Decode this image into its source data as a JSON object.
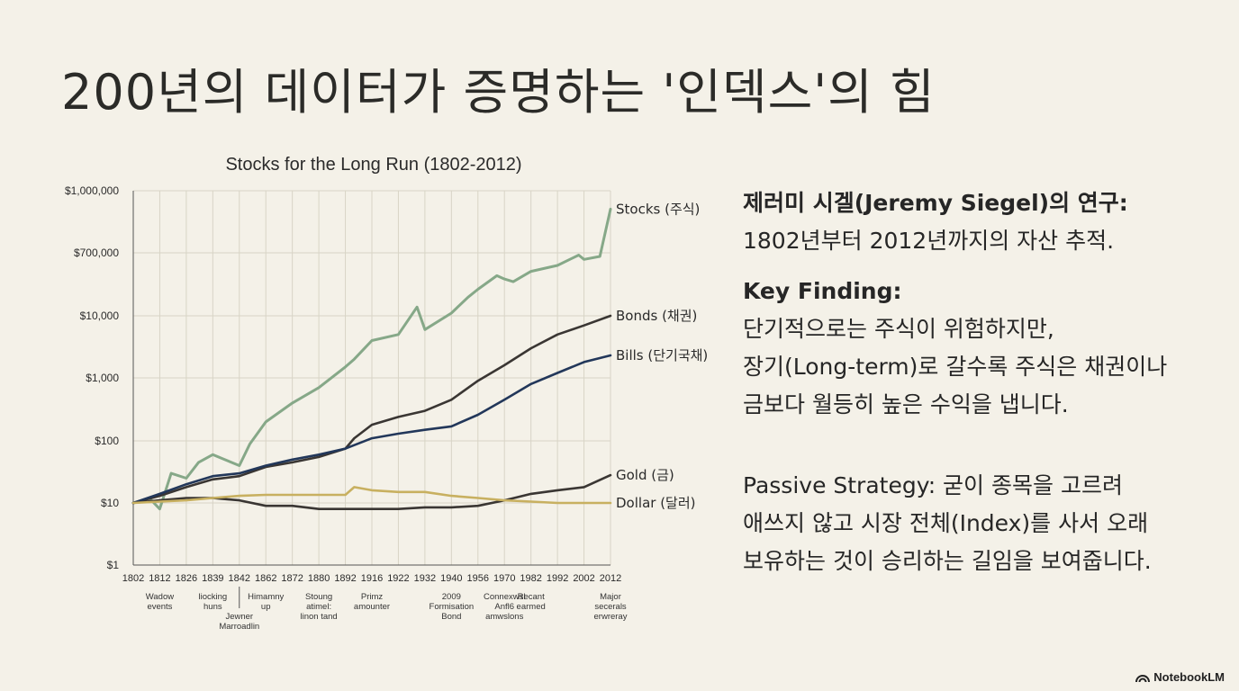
{
  "page": {
    "title": "200년의 데이터가 증명하는 '인덱스'의 힘"
  },
  "chart_data": {
    "type": "line",
    "title": "Stocks for the Long Run (1802-2012)",
    "xlabel": "",
    "ylabel": "",
    "x_ticks": [
      "1802",
      "1812",
      "1826",
      "1839",
      "1842",
      "1862",
      "1872",
      "1880",
      "1892",
      "1916",
      "1922",
      "1932",
      "1940",
      "1956",
      "1970",
      "1982",
      "1992",
      "2002",
      "2012"
    ],
    "y_ticks": [
      "$1,000,000",
      "$700,000",
      "$10,000",
      "$1,000",
      "$100",
      "$10",
      "$1"
    ],
    "ylim": [
      1,
      1000000
    ],
    "annotations": [
      {
        "lines": [
          "Wadow",
          "events"
        ],
        "at": "1812"
      },
      {
        "lines": [
          "liocking",
          "huns"
        ],
        "at": "1839"
      },
      {
        "lines": [
          "Jewner",
          "Marroadlin"
        ],
        "at": "1842"
      },
      {
        "lines": [
          "Himamny",
          "up"
        ],
        "at": "1862"
      },
      {
        "lines": [
          "Stoung",
          "atimel:",
          "linon tand"
        ],
        "at": "1880"
      },
      {
        "lines": [
          "Primz",
          "amounter"
        ],
        "at": "1916"
      },
      {
        "lines": [
          "2009",
          "Formisation",
          "Bond"
        ],
        "at": "1940"
      },
      {
        "lines": [
          "Connexwsl",
          "Anfl6",
          "amwslons"
        ],
        "at": "1970"
      },
      {
        "lines": [
          "Recant",
          "earmed"
        ],
        "at": "1982"
      },
      {
        "lines": [
          "Major",
          "secerals",
          "erwreray"
        ],
        "at": "2012"
      }
    ],
    "series": [
      {
        "name": "Stocks (주식)",
        "color": "#86a888",
        "x": [
          1802,
          1808,
          1812,
          1818,
          1826,
          1832,
          1839,
          1842,
          1850,
          1862,
          1872,
          1880,
          1892,
          1900,
          1916,
          1922,
          1929,
          1932,
          1940,
          1950,
          1956,
          1966,
          1970,
          1974,
          1982,
          1992,
          2000,
          2002,
          2008,
          2012
        ],
        "y": [
          10,
          12,
          8,
          30,
          25,
          45,
          60,
          40,
          90,
          200,
          400,
          700,
          1500,
          2000,
          4000,
          5000,
          18000,
          6000,
          12000,
          35000,
          60000,
          150000,
          120000,
          100000,
          200000,
          300000,
          600000,
          450000,
          550000,
          900000
        ]
      },
      {
        "name": "Bonds (채권)",
        "color": "#3a3633",
        "x": [
          1802,
          1812,
          1826,
          1839,
          1842,
          1862,
          1872,
          1880,
          1892,
          1900,
          1916,
          1922,
          1932,
          1940,
          1956,
          1970,
          1982,
          1992,
          2002,
          2012
        ],
        "y": [
          10,
          13,
          18,
          24,
          27,
          38,
          45,
          55,
          75,
          110,
          180,
          240,
          300,
          450,
          900,
          1600,
          3000,
          5000,
          7000,
          10000
        ]
      },
      {
        "name": "Bills (단기국채)",
        "color": "#22375a",
        "x": [
          1802,
          1812,
          1826,
          1839,
          1842,
          1862,
          1872,
          1880,
          1892,
          1916,
          1922,
          1932,
          1940,
          1956,
          1970,
          1982,
          1992,
          2002,
          2012
        ],
        "y": [
          10,
          14,
          20,
          27,
          30,
          40,
          50,
          60,
          75,
          110,
          130,
          150,
          170,
          260,
          450,
          800,
          1200,
          1800,
          2300
        ]
      },
      {
        "name": "Gold (금)",
        "color": "#3a3633",
        "x": [
          1802,
          1812,
          1826,
          1839,
          1842,
          1862,
          1872,
          1880,
          1892,
          1916,
          1922,
          1932,
          1940,
          1956,
          1970,
          1982,
          1992,
          2002,
          2012
        ],
        "y": [
          10,
          11,
          12,
          12,
          11,
          9,
          9,
          8,
          8,
          8,
          8,
          8.5,
          8.5,
          9,
          11,
          14,
          16,
          18,
          28
        ]
      },
      {
        "name": "Dollar (달러)",
        "color": "#c8b060",
        "x": [
          1802,
          1812,
          1826,
          1839,
          1842,
          1862,
          1872,
          1880,
          1892,
          1900,
          1916,
          1922,
          1932,
          1940,
          1956,
          1970,
          1982,
          1992,
          2002,
          2012
        ],
        "y": [
          10,
          10.5,
          11,
          12,
          13,
          13.5,
          13.5,
          13.5,
          13.5,
          18,
          16,
          15,
          15,
          13,
          12,
          11,
          10.5,
          10,
          10,
          10
        ]
      }
    ]
  },
  "right_panel": {
    "heading1": "제러미 시겔(Jeremy Siegel)의 연구:",
    "text1": "1802년부터 2012년까지의 자산 추적.",
    "heading2": "Key Finding:",
    "text2_line1": "단기적으로는 주식이 위험하지만,",
    "text2_line2": "장기(Long-term)로 갈수록 주식은 채권이나",
    "text2_line3": "금보다 월등히 높은 수익을 냅니다.",
    "text3_line1": "Passive Strategy: 굳이 종목을 고르려",
    "text3_line2": "애쓰지 않고 시장 전체(Index)를 사서 오래",
    "text3_line3": "보유하는 것이 승리하는 길임을 보여줍니다."
  },
  "brand": {
    "label": "NotebookLM",
    "icon": "notebooklm-logo-icon"
  }
}
